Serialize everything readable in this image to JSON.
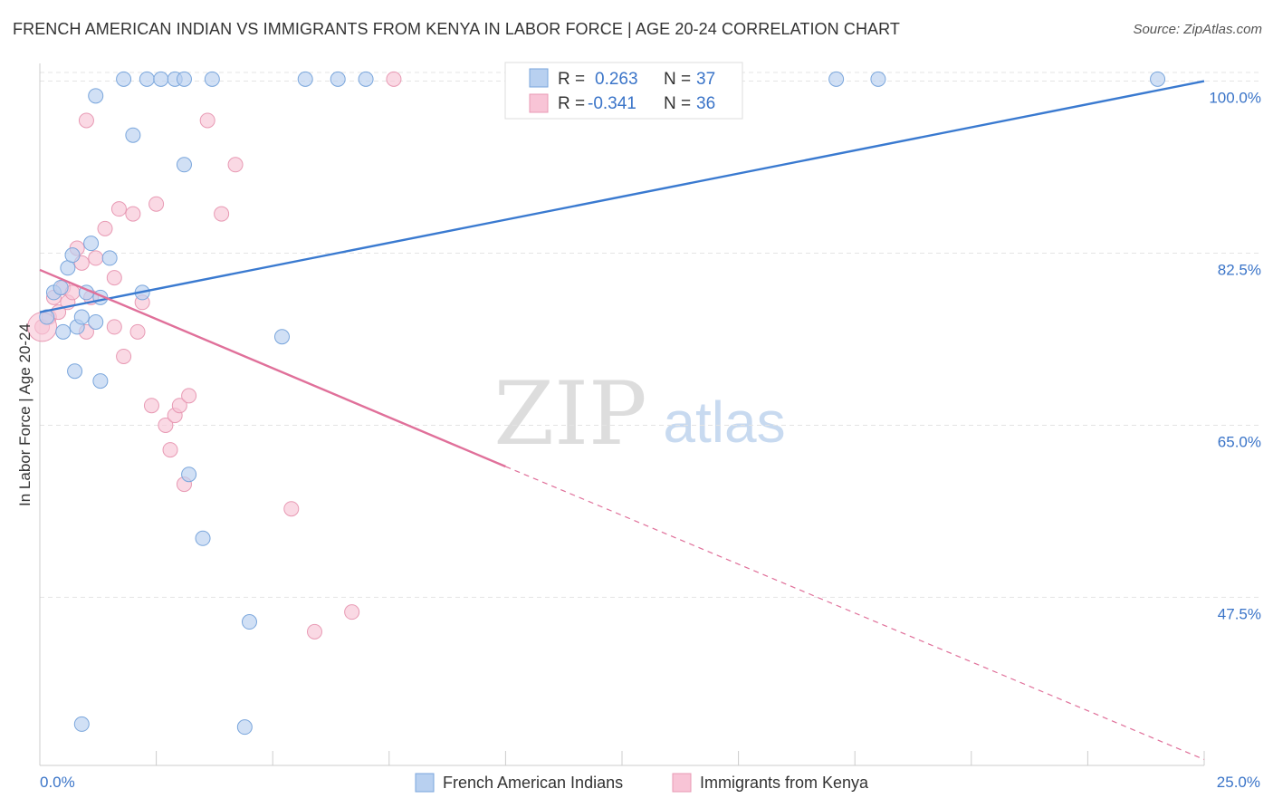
{
  "header": {
    "title": "FRENCH AMERICAN INDIAN VS IMMIGRANTS FROM KENYA IN LABOR FORCE | AGE 20-24 CORRELATION CHART",
    "source": "Source: ZipAtlas.com"
  },
  "watermark": {
    "part1": "ZIP",
    "part2": "atlas"
  },
  "colors": {
    "blue_fill": "#b8d0f0",
    "blue_stroke": "#7aa6dc",
    "blue_line": "#3a7ad0",
    "pink_fill": "#f8c4d6",
    "pink_stroke": "#e89ab4",
    "pink_line": "#e0709a",
    "value_text": "#3a74c8"
  },
  "legend_top": {
    "rows": [
      {
        "r_label": "R =",
        "r_value": "0.263",
        "n_label": "N =",
        "n_value": "37"
      },
      {
        "r_label": "R =",
        "r_value": "-0.341",
        "n_label": "N =",
        "n_value": "36"
      }
    ]
  },
  "chart_data": {
    "type": "scatter",
    "title": "FRENCH AMERICAN INDIAN VS IMMIGRANTS FROM KENYA IN LABOR FORCE | AGE 20-24 CORRELATION CHART",
    "xlabel": "",
    "ylabel": "In Labor Force | Age 20-24",
    "xlim": [
      0,
      25
    ],
    "ylim": [
      30.4,
      101.8
    ],
    "x_tick_labels": [
      "0.0%",
      "25.0%"
    ],
    "y_ticks": [
      47.5,
      65.0,
      82.5,
      100.0
    ],
    "y_tick_labels": [
      "47.5%",
      "65.0%",
      "82.5%",
      "100.0%"
    ],
    "grid": true,
    "series": [
      {
        "name": "French American Indians",
        "r": 0.263,
        "n": 37,
        "trend": {
          "x": [
            0,
            25
          ],
          "y": [
            76.5,
            100.0
          ]
        },
        "points": [
          [
            0.15,
            76.0
          ],
          [
            0.3,
            78.5
          ],
          [
            0.45,
            79.0
          ],
          [
            0.5,
            74.5
          ],
          [
            0.6,
            81.0
          ],
          [
            0.7,
            82.3
          ],
          [
            0.75,
            70.5
          ],
          [
            0.8,
            75.0
          ],
          [
            0.9,
            76.0
          ],
          [
            1.0,
            78.5
          ],
          [
            1.1,
            83.5
          ],
          [
            1.2,
            75.5
          ],
          [
            1.2,
            98.5
          ],
          [
            1.3,
            69.5
          ],
          [
            1.3,
            78.0
          ],
          [
            1.5,
            82.0
          ],
          [
            1.8,
            100.2
          ],
          [
            2.0,
            94.5
          ],
          [
            2.2,
            78.5
          ],
          [
            2.3,
            100.2
          ],
          [
            2.6,
            100.2
          ],
          [
            2.9,
            100.2
          ],
          [
            3.1,
            91.5
          ],
          [
            3.1,
            100.2
          ],
          [
            3.7,
            100.2
          ],
          [
            3.2,
            60.0
          ],
          [
            3.5,
            53.5
          ],
          [
            4.5,
            45.0
          ],
          [
            5.2,
            74.0
          ],
          [
            5.7,
            100.2
          ],
          [
            6.4,
            100.2
          ],
          [
            7.0,
            100.2
          ],
          [
            0.9,
            34.6
          ],
          [
            4.4,
            34.3
          ],
          [
            17.1,
            100.2
          ],
          [
            18.0,
            100.2
          ],
          [
            24.0,
            100.2
          ]
        ]
      },
      {
        "name": "Immigrants from Kenya",
        "r": -0.341,
        "n": 36,
        "trend": {
          "x": [
            0,
            10.0
          ],
          "y": [
            80.8,
            60.8
          ]
        },
        "trend_extension": {
          "x": [
            10.0,
            25
          ],
          "y": [
            60.8,
            31.0
          ]
        },
        "points": [
          [
            0.05,
            75.0
          ],
          [
            0.2,
            76.0
          ],
          [
            0.3,
            78.0
          ],
          [
            0.4,
            76.5
          ],
          [
            0.5,
            79.0
          ],
          [
            0.6,
            77.5
          ],
          [
            0.7,
            78.5
          ],
          [
            0.8,
            83.0
          ],
          [
            0.9,
            81.5
          ],
          [
            1.0,
            74.5
          ],
          [
            1.1,
            78.0
          ],
          [
            1.2,
            82.0
          ],
          [
            1.4,
            85.0
          ],
          [
            1.6,
            80.0
          ],
          [
            1.7,
            87.0
          ],
          [
            1.8,
            72.0
          ],
          [
            2.0,
            86.5
          ],
          [
            2.1,
            74.5
          ],
          [
            2.2,
            77.5
          ],
          [
            2.5,
            87.5
          ],
          [
            2.7,
            65.0
          ],
          [
            2.8,
            62.5
          ],
          [
            2.9,
            66.0
          ],
          [
            3.0,
            67.0
          ],
          [
            3.1,
            59.0
          ],
          [
            3.2,
            68.0
          ],
          [
            3.6,
            96.0
          ],
          [
            4.2,
            91.5
          ],
          [
            5.4,
            56.5
          ],
          [
            5.9,
            44.0
          ],
          [
            6.7,
            46.0
          ],
          [
            7.6,
            100.2
          ],
          [
            1.0,
            96.0
          ],
          [
            3.9,
            86.5
          ],
          [
            2.4,
            67.0
          ],
          [
            1.6,
            75.0
          ]
        ]
      }
    ],
    "legend": [
      "French American Indians",
      "Immigrants from Kenya"
    ]
  }
}
